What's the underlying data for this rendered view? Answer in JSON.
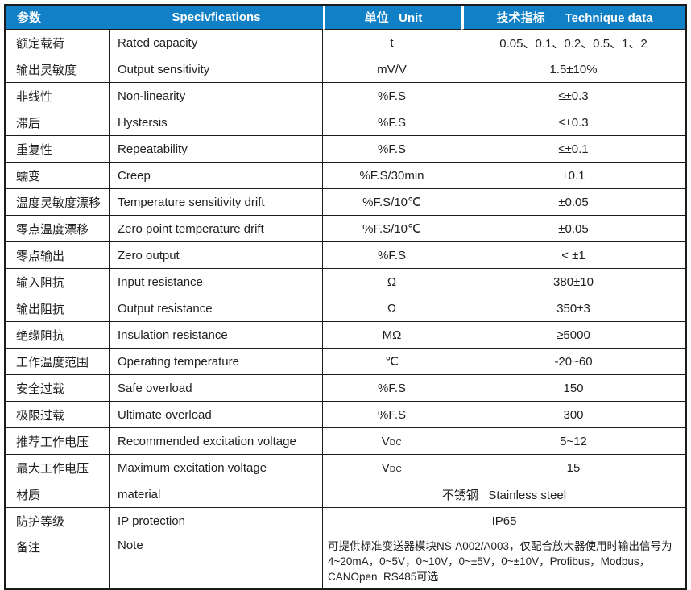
{
  "colors": {
    "header_bg": "#1180c6",
    "header_text": "#ffffff",
    "border": "#1a1a1a",
    "body_text": "#212121"
  },
  "table": {
    "header": {
      "param": "参数",
      "spec": "Specivfications",
      "unit": "单位   Unit",
      "tech": "技术指标      Technique data"
    },
    "rows": [
      {
        "param": "额定载荷",
        "spec": "Rated capacity",
        "unit": "t",
        "value": "0.05、0.1、0.2、0.5、1、2"
      },
      {
        "param": "输出灵敏度",
        "spec": "Output sensitivity",
        "unit": "mV/V",
        "value": "1.5±10%"
      },
      {
        "param": "非线性",
        "spec": "Non-linearity",
        "unit": "%F.S",
        "value": "≤±0.3"
      },
      {
        "param": "滞后",
        "spec": "Hystersis",
        "unit": "%F.S",
        "value": "≤±0.3"
      },
      {
        "param": "重复性",
        "spec": "Repeatability",
        "unit": "%F.S",
        "value": "≤±0.1"
      },
      {
        "param": "蠕变",
        "spec": "Creep",
        "unit": "%F.S/30min",
        "value": "±0.1"
      },
      {
        "param": "温度灵敏度漂移",
        "spec": "Temperature sensitivity drift",
        "unit": "%F.S/10℃",
        "value": "±0.05"
      },
      {
        "param": "零点温度漂移",
        "spec": "Zero point temperature drift",
        "unit": "%F.S/10℃",
        "value": "±0.05"
      },
      {
        "param": "零点输出",
        "spec": "Zero output",
        "unit": "%F.S",
        "value": "< ±1"
      },
      {
        "param": "输入阻抗",
        "spec": "Input resistance",
        "unit": "Ω",
        "value": "380±10"
      },
      {
        "param": "输出阻抗",
        "spec": "Output resistance",
        "unit": "Ω",
        "value": "350±3"
      },
      {
        "param": "绝缘阻抗",
        "spec": "Insulation resistance",
        "unit": "MΩ",
        "value": "≥5000"
      },
      {
        "param": "工作温度范围",
        "spec": "Operating temperature",
        "unit": "℃",
        "value": "-20~60"
      },
      {
        "param": "安全过载",
        "spec": "Safe overload",
        "unit": "%F.S",
        "value": "150"
      },
      {
        "param": "极限过载",
        "spec": "Ultimate overload",
        "unit": "%F.S",
        "value": "300"
      },
      {
        "param": "推荐工作电压",
        "spec": "Recommended excitation voltage",
        "unit": "V",
        "unit_sub": "DC",
        "value": "5~12"
      },
      {
        "param": "最大工作电压",
        "spec": "Maximum excitation voltage",
        "unit": "V",
        "unit_sub": "DC",
        "value": "15"
      },
      {
        "param": "材质",
        "spec": "material",
        "merged": true,
        "value": "不锈钢   Stainless steel"
      },
      {
        "param": "防护等级",
        "spec": "IP protection",
        "merged": true,
        "value": "IP65"
      },
      {
        "param": "备注",
        "spec": "Note",
        "merged": true,
        "value_lines": [
          "可提供标准变送器模块NS-A002/A003，仅配合放大器使用时输出信号为",
          "4~20mA，0~5V，0~10V，0~±5V，0~±10V，Profibus，Modbus，",
          "CANOpen  RS485可选"
        ]
      }
    ]
  }
}
